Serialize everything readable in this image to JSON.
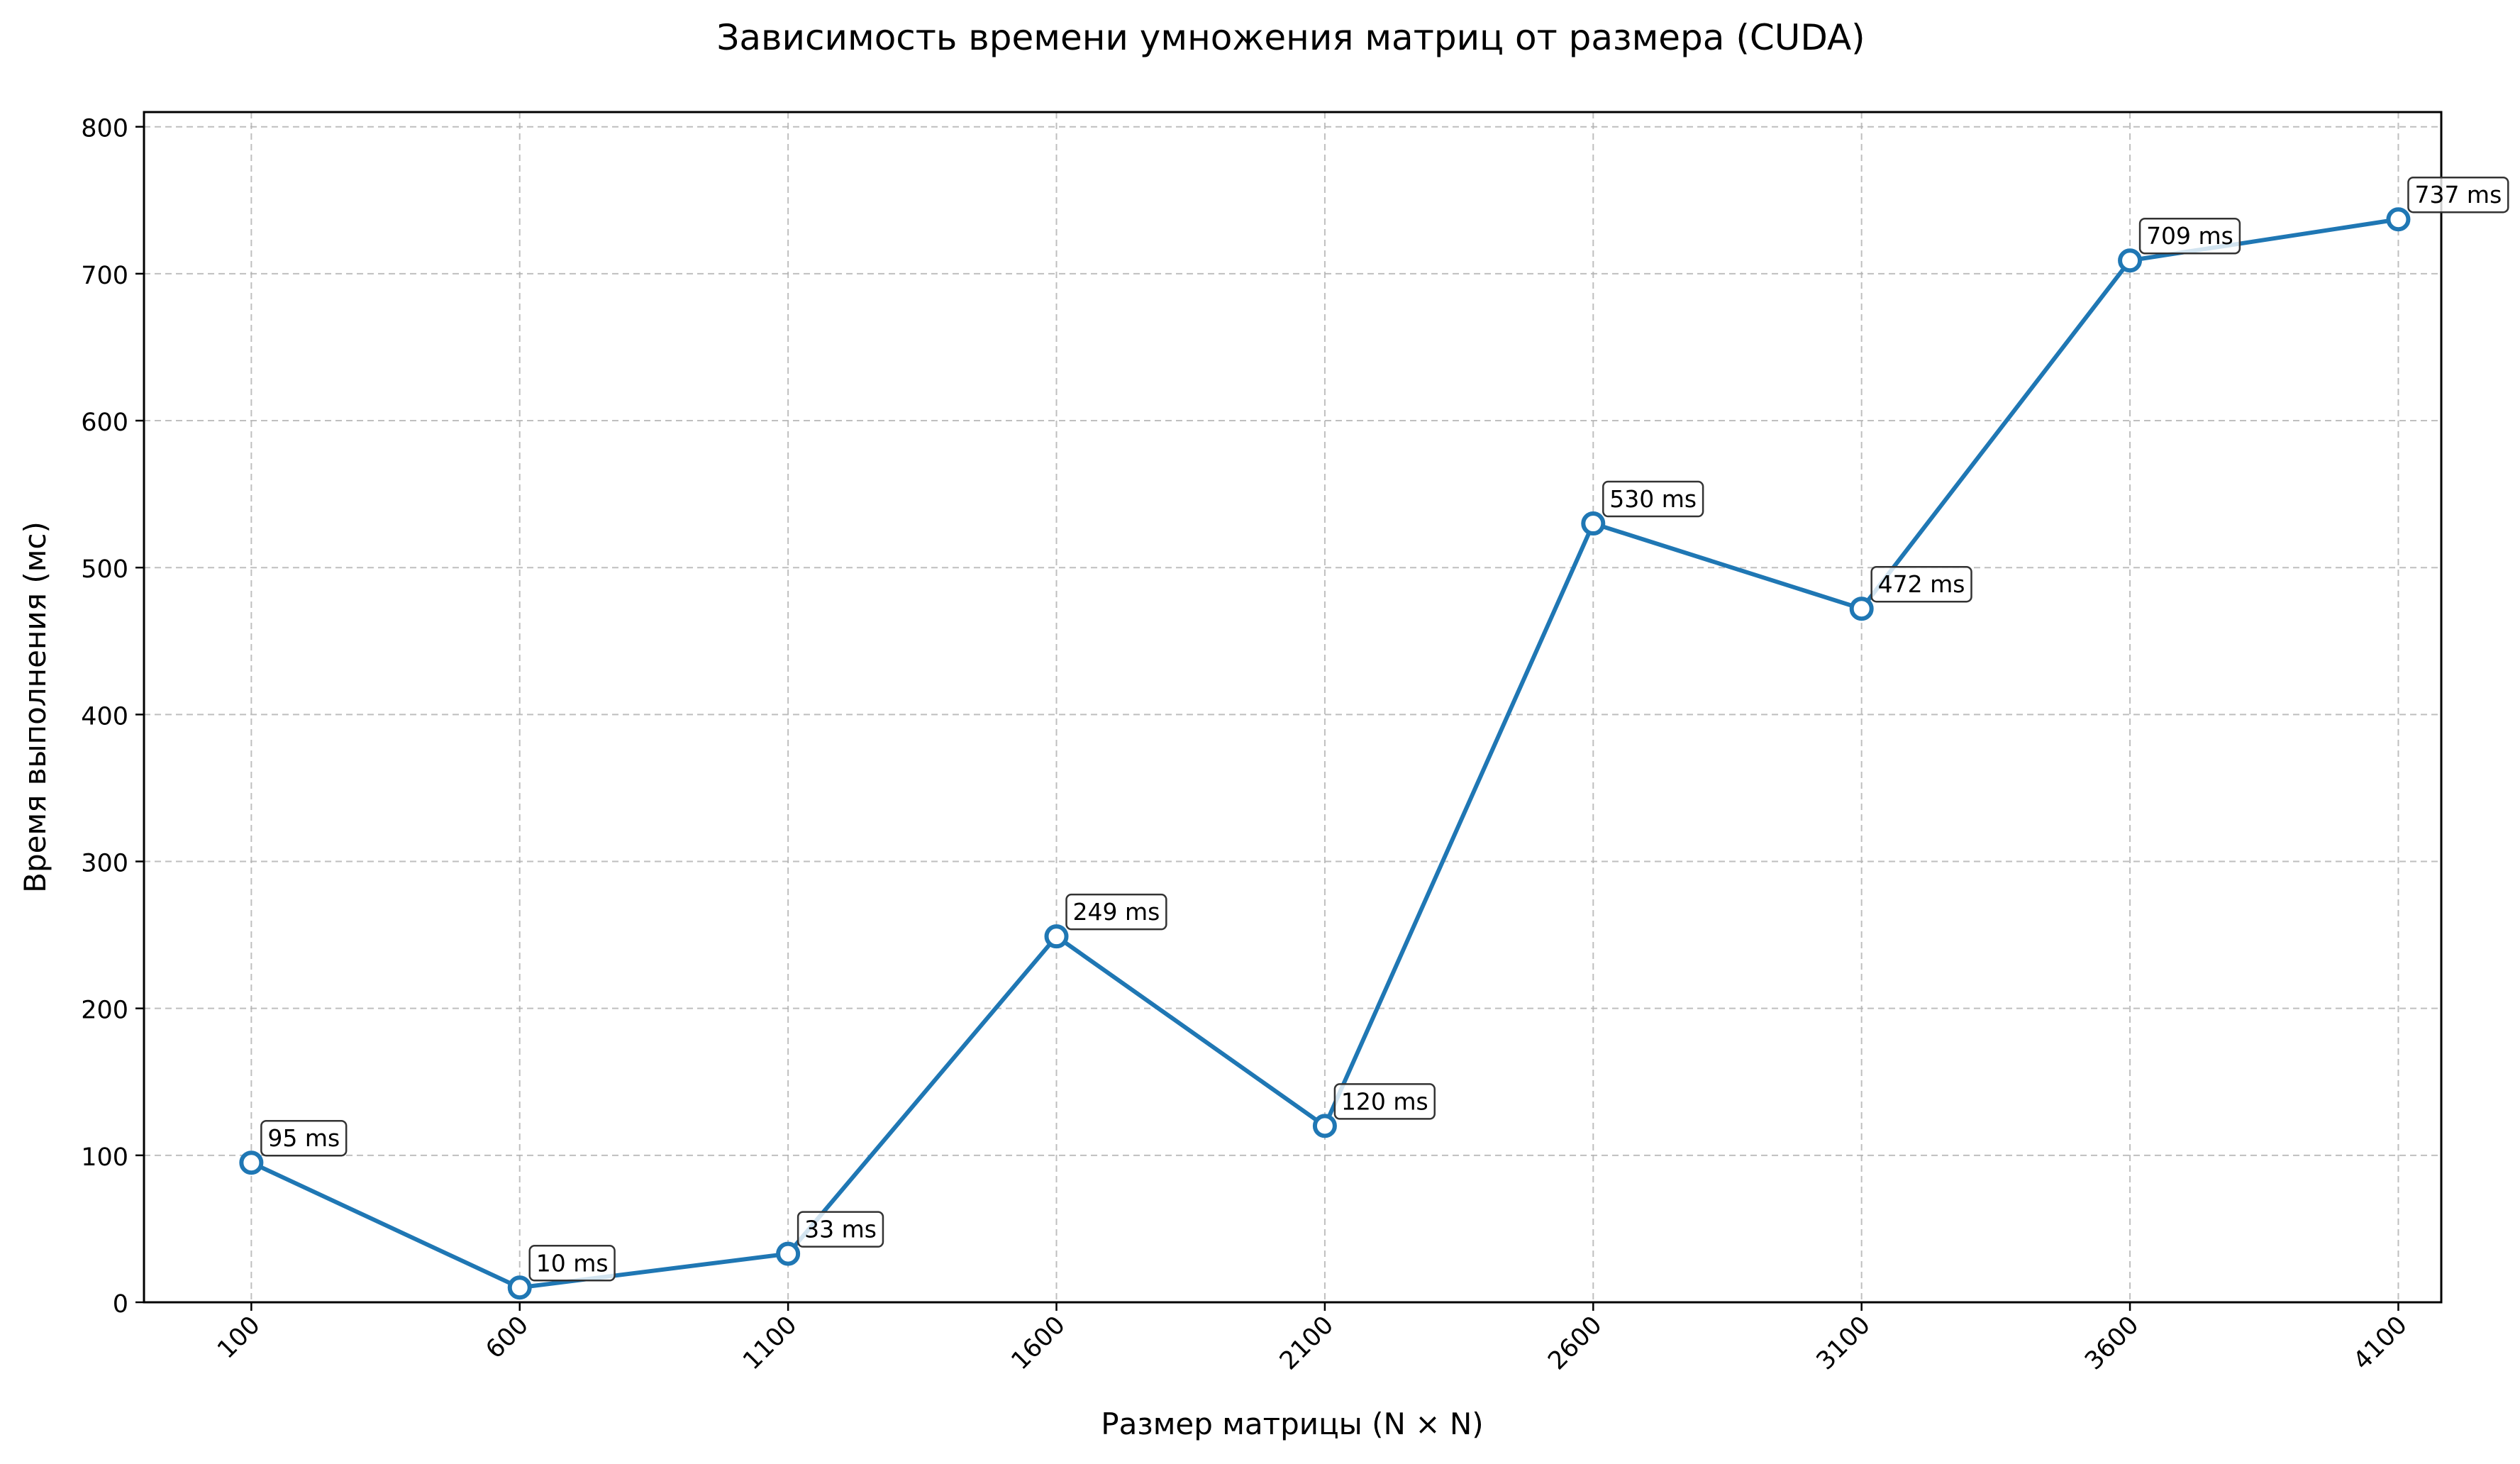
{
  "chart_data": {
    "type": "line",
    "title": "Зависимость времени умножения матриц от размера (CUDA)",
    "xlabel": "Размер матрицы (N × N)",
    "ylabel": "Время выполнения (мс)",
    "x": [
      100,
      600,
      1100,
      1600,
      2100,
      2600,
      3100,
      3600,
      4100
    ],
    "x_tick_labels": [
      "100",
      "600",
      "1100",
      "1600",
      "2100",
      "2600",
      "3100",
      "3600",
      "4100"
    ],
    "y_ticks": [
      0,
      100,
      200,
      300,
      400,
      500,
      600,
      700,
      800
    ],
    "ylim": [
      0,
      810
    ],
    "grid": true,
    "series": [
      {
        "values": [
          95,
          10,
          33,
          249,
          120,
          530,
          472,
          709,
          737
        ],
        "labels": [
          "95 ms",
          "10 ms",
          "33 ms",
          "249 ms",
          "120 ms",
          "530 ms",
          "472 ms",
          "709 ms",
          "737 ms"
        ],
        "color": "#1f77b4",
        "marker": "circle-hollow"
      }
    ]
  }
}
